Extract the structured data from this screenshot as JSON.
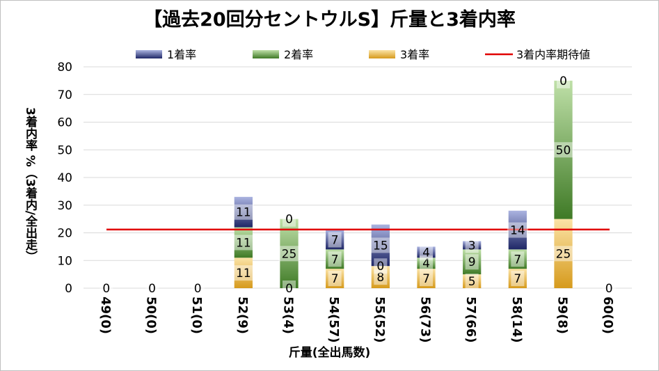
{
  "chart_data": {
    "type": "bar",
    "stacked": true,
    "title": "【過去20回分セントウルS】斤量と3着内率",
    "xlabel": "斤量(全出馬数)",
    "ylabel": "3着内率 %（3着内/全出走）",
    "ylim": [
      0,
      80
    ],
    "yticks": [
      0,
      10,
      20,
      30,
      40,
      50,
      60,
      70,
      80
    ],
    "grid": true,
    "legend_position": "top",
    "categories": [
      "49(0)",
      "50(0)",
      "51(0)",
      "52(9)",
      "53(4)",
      "54(57)",
      "55(52)",
      "56(73)",
      "57(66)",
      "58(14)",
      "59(8)",
      "60(0)"
    ],
    "series": [
      {
        "name": "3着率",
        "color": "#e0a52a",
        "values": [
          0,
          0,
          0,
          11,
          0,
          7,
          8,
          7,
          5,
          7,
          25,
          0
        ]
      },
      {
        "name": "2着率",
        "color": "#5f9a3c",
        "values": [
          0,
          0,
          0,
          11,
          25,
          7,
          0,
          4,
          9,
          7,
          50,
          0
        ]
      },
      {
        "name": "1着率",
        "color": "#2e3a7e",
        "values": [
          0,
          0,
          0,
          11,
          0,
          7,
          15,
          4,
          3,
          14,
          0,
          0
        ]
      }
    ],
    "reference_line": {
      "name": "3着内率期待値",
      "value": 21.2,
      "color": "#e00000"
    },
    "data_labels": [
      {
        "category": "49(0)",
        "series": "3着率",
        "text": "0"
      },
      {
        "category": "50(0)",
        "series": "3着率",
        "text": "0"
      },
      {
        "category": "51(0)",
        "series": "3着率",
        "text": "0"
      },
      {
        "category": "52(9)",
        "series": "3着率",
        "text": "11"
      },
      {
        "category": "52(9)",
        "series": "2着率",
        "text": "11"
      },
      {
        "category": "52(9)",
        "series": "1着率",
        "text": "11"
      },
      {
        "category": "53(4)",
        "series": "3着率",
        "text": "0"
      },
      {
        "category": "53(4)",
        "series": "2着率",
        "text": "25"
      },
      {
        "category": "53(4)",
        "series": "1着率",
        "text": "0"
      },
      {
        "category": "54(57)",
        "series": "3着率",
        "text": "7"
      },
      {
        "category": "54(57)",
        "series": "2着率",
        "text": "7"
      },
      {
        "category": "54(57)",
        "series": "1着率",
        "text": "7"
      },
      {
        "category": "55(52)",
        "series": "3着率",
        "text": "8"
      },
      {
        "category": "55(52)",
        "series": "2着率",
        "text": "0"
      },
      {
        "category": "55(52)",
        "series": "1着率",
        "text": "15"
      },
      {
        "category": "56(73)",
        "series": "3着率",
        "text": "7"
      },
      {
        "category": "56(73)",
        "series": "2着率",
        "text": "4"
      },
      {
        "category": "56(73)",
        "series": "1着率",
        "text": "4"
      },
      {
        "category": "57(66)",
        "series": "3着率",
        "text": "5"
      },
      {
        "category": "57(66)",
        "series": "2着率",
        "text": "9"
      },
      {
        "category": "57(66)",
        "series": "1着率",
        "text": "3"
      },
      {
        "category": "58(14)",
        "series": "3着率",
        "text": "7"
      },
      {
        "category": "58(14)",
        "series": "2着率",
        "text": "7"
      },
      {
        "category": "58(14)",
        "series": "1着率",
        "text": "14"
      },
      {
        "category": "59(8)",
        "series": "3着率",
        "text": "25"
      },
      {
        "category": "59(8)",
        "series": "2着率",
        "text": "50"
      },
      {
        "category": "59(8)",
        "series": "1着率",
        "text": "0"
      },
      {
        "category": "60(0)",
        "series": "3着率",
        "text": "0"
      }
    ],
    "legend": [
      "1着率",
      "2着率",
      "3着率",
      "3着内率期待値"
    ]
  }
}
